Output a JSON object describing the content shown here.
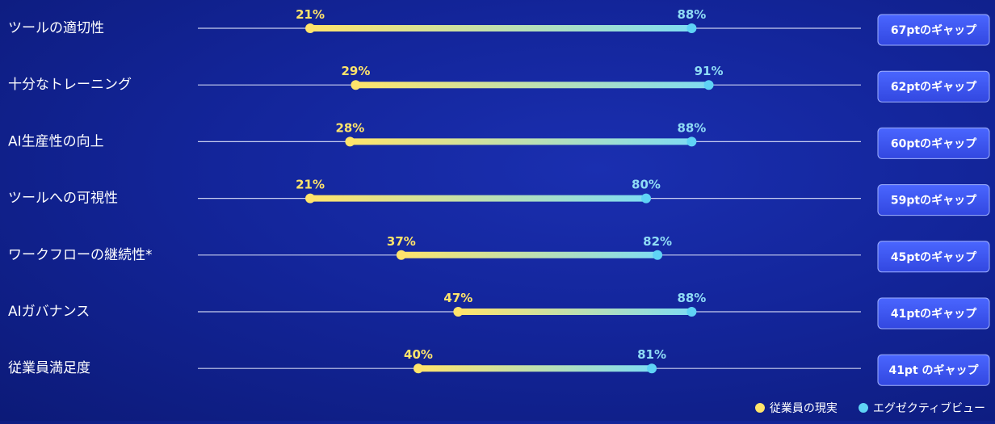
{
  "chart_data": {
    "type": "dumbbell",
    "categories": [
      "ツールの適切性",
      "十分なトレーニング",
      "AI生産性の向上",
      "ツールへの可視性",
      "ワークフローの継続性*",
      "AIガバナンス",
      "従業員満足度"
    ],
    "series": [
      {
        "name": "従業員の現実",
        "values": [
          21,
          29,
          28,
          21,
          37,
          47,
          40
        ],
        "labels": [
          "21%",
          "29%",
          "28%",
          "21%",
          "37%",
          "47%",
          "40%"
        ],
        "color": "#ffe46b"
      },
      {
        "name": "エグゼクティブビュー",
        "values": [
          88,
          91,
          88,
          80,
          82,
          88,
          81
        ],
        "labels": [
          "88%",
          "91%",
          "88%",
          "80%",
          "82%",
          "88%",
          "81%"
        ],
        "color": "#5fd3f5"
      }
    ],
    "gaps": [
      "67ptのギャップ",
      "62ptのギャップ",
      "60ptのギャップ",
      "59ptのギャップ",
      "45ptのギャップ",
      "41ptのギャップ",
      "41pt のギャップ"
    ],
    "xlim": [
      0,
      100
    ],
    "legend_position": "bottom-right"
  },
  "colors": {
    "employee": "#ffe46b",
    "executive": "#5fd3f5",
    "line": "#e8ecff"
  }
}
